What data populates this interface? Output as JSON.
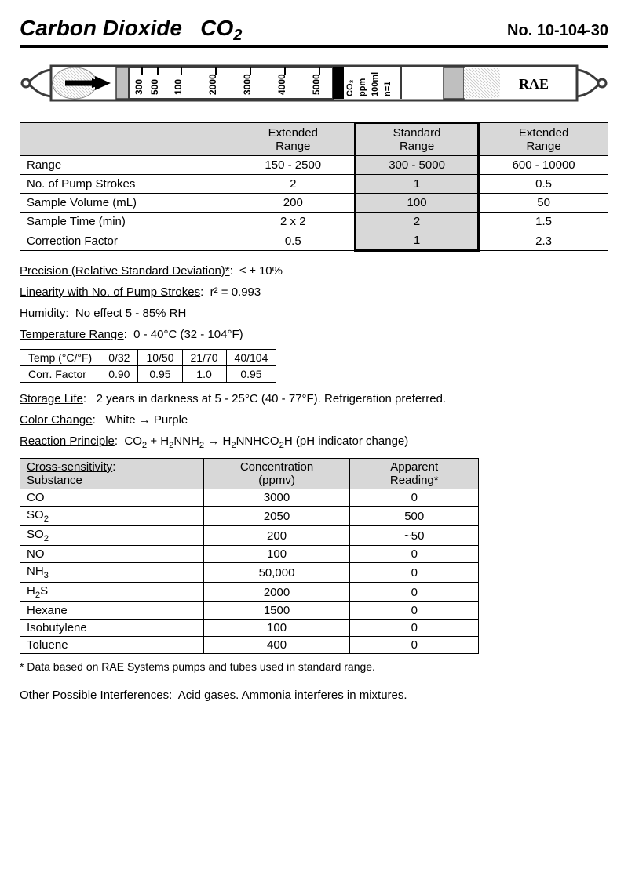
{
  "header": {
    "title_pre": "Carbon Dioxide",
    "title_formula": "CO",
    "title_sub": "2",
    "no_label": "No.",
    "no_value": "10-104-30"
  },
  "tube": {
    "scale_labels": [
      "300",
      "500",
      "100",
      "2000",
      "3000",
      "4000",
      "5000"
    ],
    "right_labels": [
      "CO₂",
      "ppm",
      "100ml",
      "n=1"
    ],
    "brand": "RAE",
    "stroke_color": "#4a4a4a",
    "fill_hatch": "#dcdcdc",
    "orange": "#808080"
  },
  "range_table": {
    "headers": [
      "",
      "Extended\nRange",
      "Standard\nRange",
      "Extended\nRange"
    ],
    "rows": [
      {
        "label": "Range",
        "vals": [
          "150 - 2500",
          "300 - 5000",
          "600 - 10000"
        ]
      },
      {
        "label": "No. of Pump Strokes",
        "vals": [
          "2",
          "1",
          "0.5"
        ]
      },
      {
        "label": "Sample Volume (mL)",
        "vals": [
          "200",
          "100",
          "50"
        ]
      },
      {
        "label": "Sample Time (min)",
        "vals": [
          "2 x 2",
          "2",
          "1.5"
        ]
      },
      {
        "label": "Correction Factor",
        "vals": [
          "0.5",
          "1",
          "2.3"
        ]
      }
    ],
    "header_bg": "#d8d8d8",
    "std_col_bg": "#d8d8d8"
  },
  "specs": {
    "precision_label": "Precision (Relative Standard Deviation)*",
    "precision_value": "≤ ± 10%",
    "linearity_label": "Linearity with No. of Pump Strokes",
    "linearity_value": "r² = 0.993",
    "humidity_label": "Humidity",
    "humidity_value": "No effect 5 - 85% RH",
    "temp_label": "Temperature Range",
    "temp_value": "0 - 40°C   (32 - 104°F)",
    "storage_label": "Storage Life",
    "storage_value": "2 years in darkness at 5 - 25°C (40 - 77°F). Refrigeration preferred.",
    "color_label": "Color Change",
    "color_value": "White  →  Purple",
    "reaction_label": "Reaction Principle",
    "reaction_value_html": "CO<sub class='chem'>2</sub>  +  H<sub class='chem'>2</sub>NNH<sub class='chem'>2</sub>  → H<sub class='chem'>2</sub>NNHCO<sub class='chem'>2</sub>H  (pH indicator change)",
    "footnote": "* Data based on RAE Systems pumps and tubes used in standard range.",
    "other_label": "Other Possible Interferences",
    "other_value": "Acid gases.  Ammonia interferes in mixtures."
  },
  "temp_table": {
    "row1_label": "Temp (°C/°F)",
    "row1": [
      "0/32",
      "10/50",
      "21/70",
      "40/104"
    ],
    "row2_label": "Corr. Factor",
    "row2": [
      "0.90",
      "0.95",
      "1.0",
      "0.95"
    ]
  },
  "cross_table": {
    "header_left_top": "Cross-sensitivity",
    "header_left_bottom": "Substance",
    "header_mid": "Concentration\n(ppmv)",
    "header_right": "Apparent\nReading*",
    "rows": [
      {
        "sub_html": "CO",
        "conc": "3000",
        "read": "0"
      },
      {
        "sub_html": "SO<sub class='chem'>2</sub>",
        "conc": "2050",
        "read": "500"
      },
      {
        "sub_html": "SO<sub class='chem'>2</sub>",
        "conc": "200",
        "read": "~50"
      },
      {
        "sub_html": "NO",
        "conc": "100",
        "read": "0"
      },
      {
        "sub_html": "NH<sub class='chem'>3</sub>",
        "conc": "50,000",
        "read": "0"
      },
      {
        "sub_html": "H<sub class='chem'>2</sub>S",
        "conc": "2000",
        "read": "0"
      },
      {
        "sub_html": "Hexane",
        "conc": "1500",
        "read": "0"
      },
      {
        "sub_html": "Isobutylene",
        "conc": "100",
        "read": "0"
      },
      {
        "sub_html": "Toluene",
        "conc": "400",
        "read": "0"
      }
    ]
  }
}
